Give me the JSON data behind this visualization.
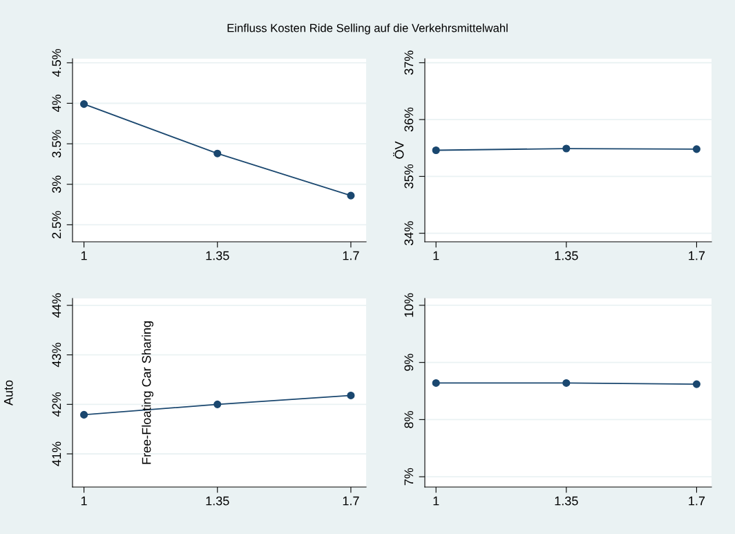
{
  "chart_data": [
    {
      "type": "line",
      "title": "Einfluss Kosten Ride Selling auf die Verkehrsmittelwahl",
      "x": [
        1,
        1.35,
        1.7
      ],
      "values": [
        3.99,
        3.38,
        2.86
      ],
      "color": "#1a476f",
      "marker": "circle",
      "grid": "y",
      "xlim": [
        0.97,
        1.74
      ],
      "xticks": [
        1,
        1.35,
        1.7
      ],
      "ylim": [
        2.29,
        4.55
      ],
      "yticks": [
        {
          "value": 2.5,
          "label": "2.5%"
        },
        {
          "value": 3,
          "label": "3%"
        },
        {
          "value": 3.5,
          "label": "3.5%"
        },
        {
          "value": 4,
          "label": "4%"
        },
        {
          "value": 4.5,
          "label": "4.5%"
        }
      ]
    },
    {
      "type": "line",
      "ylabel": "ÖV",
      "x": [
        1,
        1.35,
        1.7
      ],
      "values": [
        35.46,
        35.49,
        35.48
      ],
      "color": "#1a476f",
      "marker": "circle",
      "grid": "y",
      "xlim": [
        0.97,
        1.74
      ],
      "xticks": [
        1,
        1.35,
        1.7
      ],
      "ylim": [
        33.85,
        37.07
      ],
      "yticks": [
        {
          "value": 34,
          "label": "34%"
        },
        {
          "value": 35,
          "label": "35%"
        },
        {
          "value": 36,
          "label": "36%"
        },
        {
          "value": 37,
          "label": "37%"
        }
      ]
    },
    {
      "type": "line",
      "ylabel": "Auto",
      "x": [
        1,
        1.35,
        1.7
      ],
      "values": [
        41.79,
        42.0,
        42.18
      ],
      "color": "#1a476f",
      "marker": "circle",
      "grid": "y",
      "xlim": [
        0.97,
        1.74
      ],
      "xticks": [
        1,
        1.35,
        1.7
      ],
      "ylim": [
        40.33,
        44.14
      ],
      "yticks": [
        {
          "value": 41,
          "label": "41%"
        },
        {
          "value": 42,
          "label": "42%"
        },
        {
          "value": 43,
          "label": "43%"
        },
        {
          "value": 44,
          "label": "44%"
        }
      ]
    },
    {
      "type": "line",
      "ylabel": "Free-Floating Car Sharing",
      "x": [
        1,
        1.35,
        1.7
      ],
      "values": [
        8.64,
        8.64,
        8.62
      ],
      "color": "#1a476f",
      "marker": "circle",
      "grid": "y",
      "xlim": [
        0.97,
        1.74
      ],
      "xticks": [
        1,
        1.35,
        1.7
      ],
      "ylim": [
        6.82,
        10.12
      ],
      "yticks": [
        {
          "value": 7,
          "label": "7%"
        },
        {
          "value": 8,
          "label": "8%"
        },
        {
          "value": 9,
          "label": "9%"
        },
        {
          "value": 10,
          "label": "10%"
        }
      ]
    }
  ]
}
